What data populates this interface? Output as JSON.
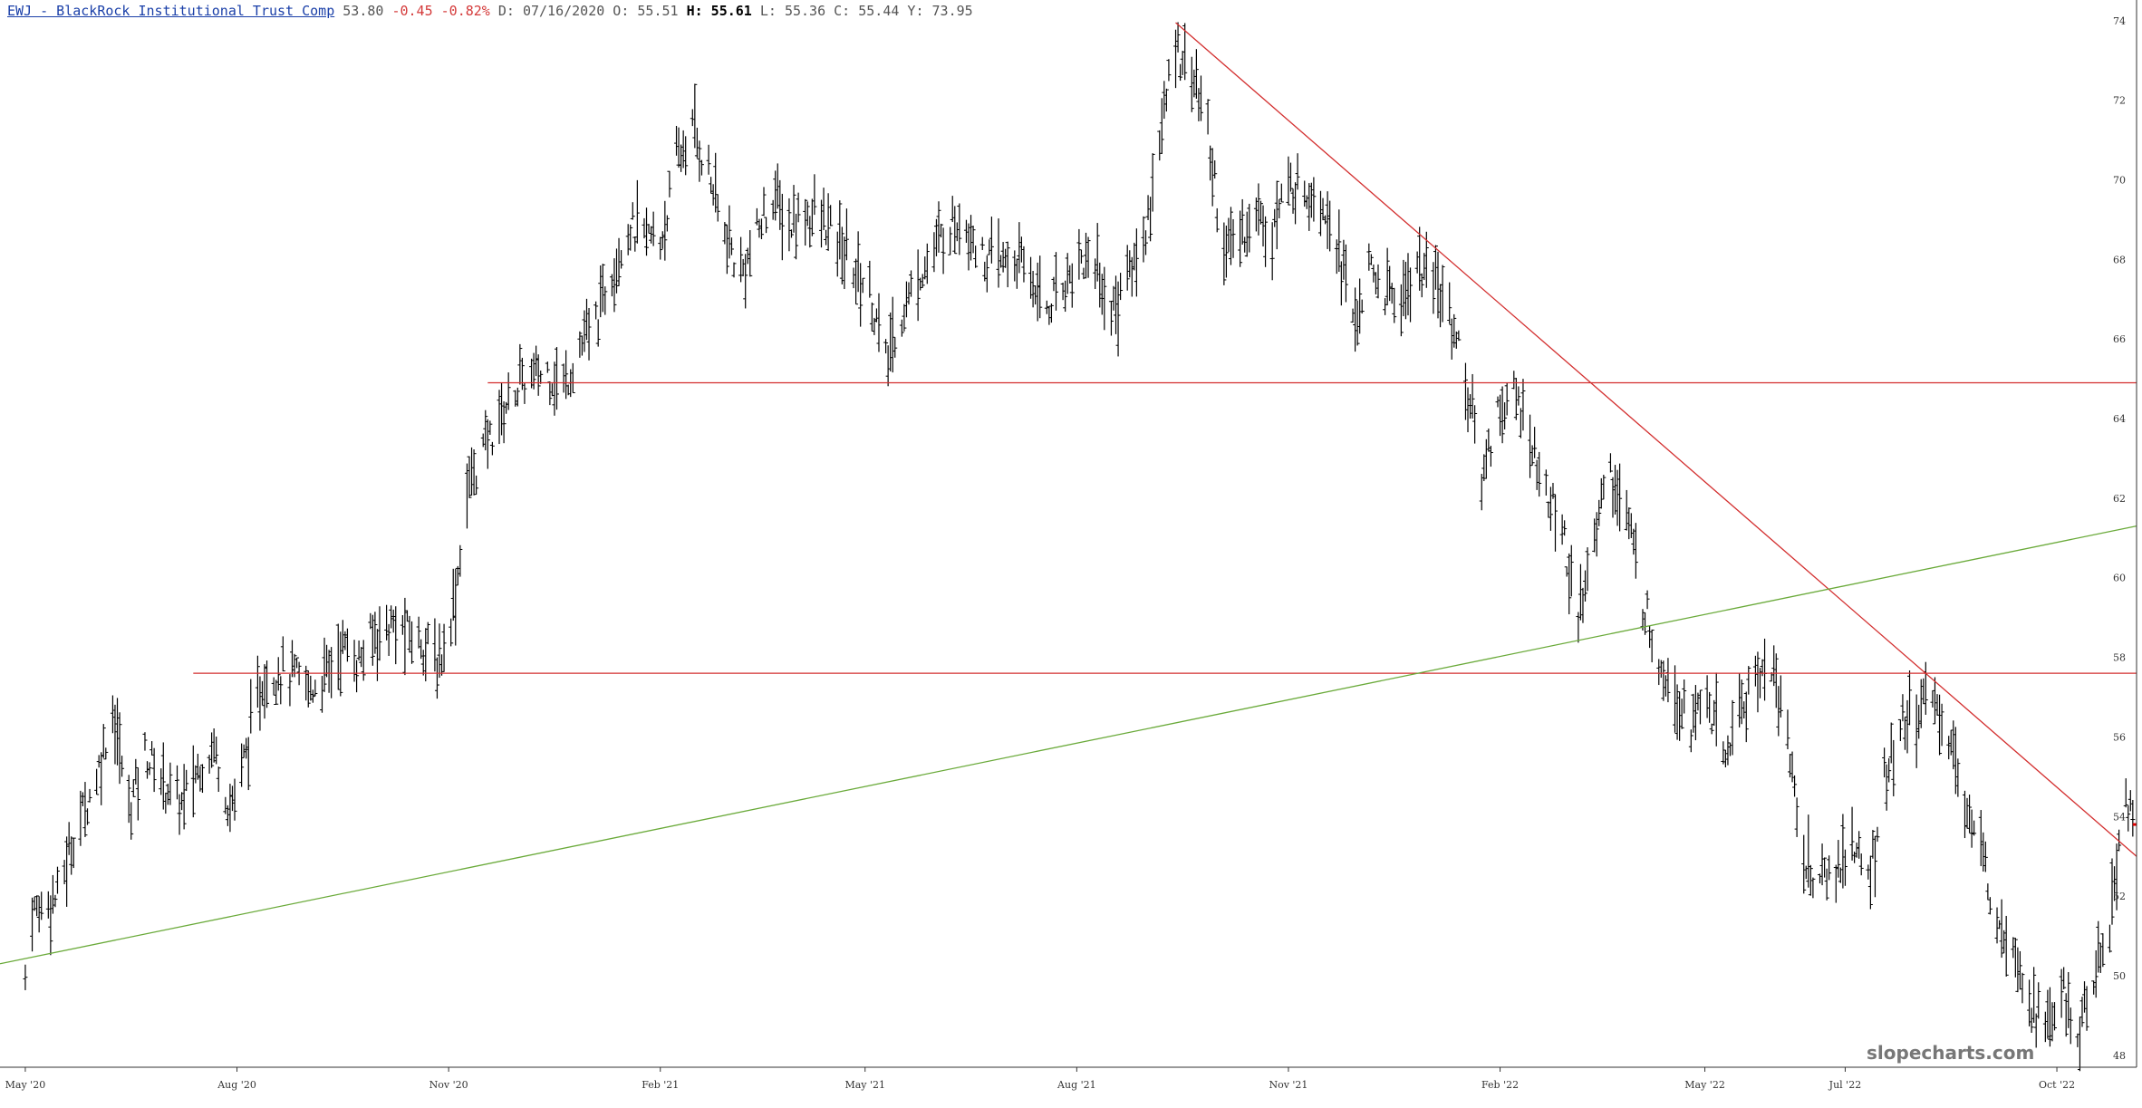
{
  "header": {
    "symbol": "EWJ - BlackRock Institutional Trust Comp",
    "last": "53.80",
    "change": "-0.45",
    "change_pct": "-0.82%",
    "date_label": "D:",
    "date": "07/16/2020",
    "open_label": "O:",
    "open": "55.51",
    "high_label": "H:",
    "high": "55.61",
    "low_label": "L:",
    "low": "55.36",
    "close_label": "C:",
    "close": "55.44",
    "year_high_label": "Y:",
    "year_high": "73.95"
  },
  "watermark": "slopecharts.com",
  "colors": {
    "bars": "#000000",
    "resistance": "#d32f2f",
    "trend_up": "#6aaa3a",
    "price_marker": "#e00000",
    "axis": "#333333",
    "header_negative": "#d43a3a",
    "header_symbol": "#1a3fa8"
  },
  "chart_data": {
    "type": "ohlc",
    "x_range": [
      "2020-04-20",
      "2022-11-07"
    ],
    "y_range": [
      47.7,
      74.2
    ],
    "y_ticks": [
      48,
      50,
      52,
      54,
      56,
      58,
      60,
      62,
      64,
      66,
      68,
      70,
      72,
      74
    ],
    "x_ticks": [
      {
        "date": "2020-05-01",
        "label": "May '20"
      },
      {
        "date": "2020-08-01",
        "label": "Aug '20"
      },
      {
        "date": "2020-11-01",
        "label": "Nov '20"
      },
      {
        "date": "2021-02-01",
        "label": "Feb '21"
      },
      {
        "date": "2021-05-01",
        "label": "May '21"
      },
      {
        "date": "2021-08-01",
        "label": "Aug '21"
      },
      {
        "date": "2021-11-01",
        "label": "Nov '21"
      },
      {
        "date": "2022-02-01",
        "label": "Feb '22"
      },
      {
        "date": "2022-05-01",
        "label": "May '22"
      },
      {
        "date": "2022-07-01",
        "label": "Jul '22"
      },
      {
        "date": "2022-10-01",
        "label": "Oct '22"
      }
    ],
    "price_points": [
      [
        "2020-05-01",
        50.0
      ],
      [
        "2020-05-04",
        51.6
      ],
      [
        "2020-05-15",
        52.0
      ],
      [
        "2020-05-22",
        53.5
      ],
      [
        "2020-06-01",
        55.0
      ],
      [
        "2020-06-08",
        56.7
      ],
      [
        "2020-06-15",
        54.2
      ],
      [
        "2020-06-22",
        55.6
      ],
      [
        "2020-07-01",
        54.8
      ],
      [
        "2020-07-08",
        54.3
      ],
      [
        "2020-07-15",
        55.2
      ],
      [
        "2020-07-22",
        55.8
      ],
      [
        "2020-07-29",
        54.2
      ],
      [
        "2020-08-05",
        55.6
      ],
      [
        "2020-08-12",
        57.4
      ],
      [
        "2020-08-19",
        57.7
      ],
      [
        "2020-08-26",
        57.5
      ],
      [
        "2020-09-02",
        57.2
      ],
      [
        "2020-09-09",
        57.6
      ],
      [
        "2020-09-16",
        58.3
      ],
      [
        "2020-09-23",
        57.9
      ],
      [
        "2020-09-30",
        58.6
      ],
      [
        "2020-10-07",
        58.8
      ],
      [
        "2020-10-14",
        58.6
      ],
      [
        "2020-10-21",
        58.4
      ],
      [
        "2020-10-28",
        57.8
      ],
      [
        "2020-11-04",
        59.6
      ],
      [
        "2020-11-09",
        62.2
      ],
      [
        "2020-11-16",
        63.2
      ],
      [
        "2020-11-23",
        64.0
      ],
      [
        "2020-11-30",
        64.8
      ],
      [
        "2020-12-07",
        65.0
      ],
      [
        "2020-12-14",
        65.2
      ],
      [
        "2020-12-21",
        64.8
      ],
      [
        "2020-12-28",
        65.8
      ],
      [
        "2021-01-04",
        66.4
      ],
      [
        "2021-01-11",
        67.8
      ],
      [
        "2021-01-18",
        68.8
      ],
      [
        "2021-01-25",
        68.6
      ],
      [
        "2021-02-01",
        68.4
      ],
      [
        "2021-02-08",
        70.4
      ],
      [
        "2021-02-15",
        71.3
      ],
      [
        "2021-02-22",
        70.2
      ],
      [
        "2021-03-01",
        68.6
      ],
      [
        "2021-03-08",
        67.6
      ],
      [
        "2021-03-15",
        68.6
      ],
      [
        "2021-03-22",
        69.6
      ],
      [
        "2021-03-29",
        68.8
      ],
      [
        "2021-04-05",
        69.2
      ],
      [
        "2021-04-12",
        69.0
      ],
      [
        "2021-04-19",
        68.4
      ],
      [
        "2021-04-26",
        67.8
      ],
      [
        "2021-05-03",
        67.2
      ],
      [
        "2021-05-10",
        65.4
      ],
      [
        "2021-05-17",
        66.6
      ],
      [
        "2021-05-24",
        67.6
      ],
      [
        "2021-05-31",
        68.2
      ],
      [
        "2021-06-07",
        68.9
      ],
      [
        "2021-06-14",
        69.0
      ],
      [
        "2021-06-21",
        68.0
      ],
      [
        "2021-06-28",
        67.9
      ],
      [
        "2021-07-05",
        68.0
      ],
      [
        "2021-07-12",
        67.6
      ],
      [
        "2021-07-19",
        66.8
      ],
      [
        "2021-07-26",
        67.4
      ],
      [
        "2021-08-02",
        68.0
      ],
      [
        "2021-08-09",
        68.0
      ],
      [
        "2021-08-16",
        66.6
      ],
      [
        "2021-08-23",
        67.6
      ],
      [
        "2021-08-30",
        68.4
      ],
      [
        "2021-09-06",
        71.0
      ],
      [
        "2021-09-13",
        73.4
      ],
      [
        "2021-09-20",
        72.8
      ],
      [
        "2021-09-27",
        71.2
      ],
      [
        "2021-10-04",
        68.2
      ],
      [
        "2021-10-11",
        68.6
      ],
      [
        "2021-10-18",
        69.2
      ],
      [
        "2021-10-25",
        68.8
      ],
      [
        "2021-11-01",
        69.8
      ],
      [
        "2021-11-08",
        69.8
      ],
      [
        "2021-11-15",
        69.6
      ],
      [
        "2021-11-22",
        68.6
      ],
      [
        "2021-11-29",
        66.4
      ],
      [
        "2021-12-06",
        67.6
      ],
      [
        "2021-12-13",
        67.2
      ],
      [
        "2021-12-20",
        67.0
      ],
      [
        "2021-12-27",
        67.8
      ],
      [
        "2022-01-03",
        67.4
      ],
      [
        "2022-01-10",
        66.8
      ],
      [
        "2022-01-17",
        65.0
      ],
      [
        "2022-01-24",
        62.6
      ],
      [
        "2022-01-31",
        64.2
      ],
      [
        "2022-02-07",
        64.6
      ],
      [
        "2022-02-14",
        63.6
      ],
      [
        "2022-02-21",
        62.0
      ],
      [
        "2022-02-28",
        61.4
      ],
      [
        "2022-03-07",
        58.6
      ],
      [
        "2022-03-14",
        61.4
      ],
      [
        "2022-03-21",
        62.6
      ],
      [
        "2022-03-28",
        61.6
      ],
      [
        "2022-04-04",
        59.4
      ],
      [
        "2022-04-11",
        58.0
      ],
      [
        "2022-04-18",
        57.2
      ],
      [
        "2022-04-25",
        56.4
      ],
      [
        "2022-05-02",
        57.0
      ],
      [
        "2022-05-09",
        55.4
      ],
      [
        "2022-05-16",
        56.6
      ],
      [
        "2022-05-23",
        57.6
      ],
      [
        "2022-05-30",
        57.8
      ],
      [
        "2022-06-06",
        56.0
      ],
      [
        "2022-06-13",
        52.8
      ],
      [
        "2022-06-20",
        52.4
      ],
      [
        "2022-06-27",
        52.6
      ],
      [
        "2022-07-04",
        53.4
      ],
      [
        "2022-07-11",
        52.2
      ],
      [
        "2022-07-18",
        54.8
      ],
      [
        "2022-07-25",
        56.2
      ],
      [
        "2022-08-01",
        56.6
      ],
      [
        "2022-08-08",
        57.0
      ],
      [
        "2022-08-15",
        56.0
      ],
      [
        "2022-08-22",
        54.4
      ],
      [
        "2022-08-29",
        53.0
      ],
      [
        "2022-09-05",
        51.6
      ],
      [
        "2022-09-12",
        51.0
      ],
      [
        "2022-09-19",
        49.4
      ],
      [
        "2022-09-26",
        48.6
      ],
      [
        "2022-10-03",
        49.6
      ],
      [
        "2022-10-10",
        48.4
      ],
      [
        "2022-10-17",
        50.0
      ],
      [
        "2022-10-24",
        51.4
      ],
      [
        "2022-10-31",
        54.4
      ],
      [
        "2022-11-04",
        53.8
      ]
    ],
    "lines": [
      {
        "name": "support-65",
        "kind": "horizontal",
        "color": "resistance",
        "from": "2020-11-18",
        "to": "2022-11-07",
        "price": 64.9
      },
      {
        "name": "support-57",
        "kind": "horizontal",
        "color": "resistance",
        "from": "2020-07-13",
        "to": "2022-11-07",
        "price": 57.6
      },
      {
        "name": "downtrend",
        "kind": "segment",
        "color": "resistance",
        "x1": "2021-09-13",
        "y1": 73.95,
        "x2": "2022-11-07",
        "y2": 53.0
      },
      {
        "name": "uptrend",
        "kind": "segment",
        "color": "trend_up",
        "x1": "2020-04-20",
        "y1": 50.3,
        "x2": "2022-11-07",
        "y2": 61.3
      }
    ],
    "last_price_marker": {
      "price": 53.8,
      "from": "2022-11-03",
      "to": "2022-11-07"
    }
  }
}
